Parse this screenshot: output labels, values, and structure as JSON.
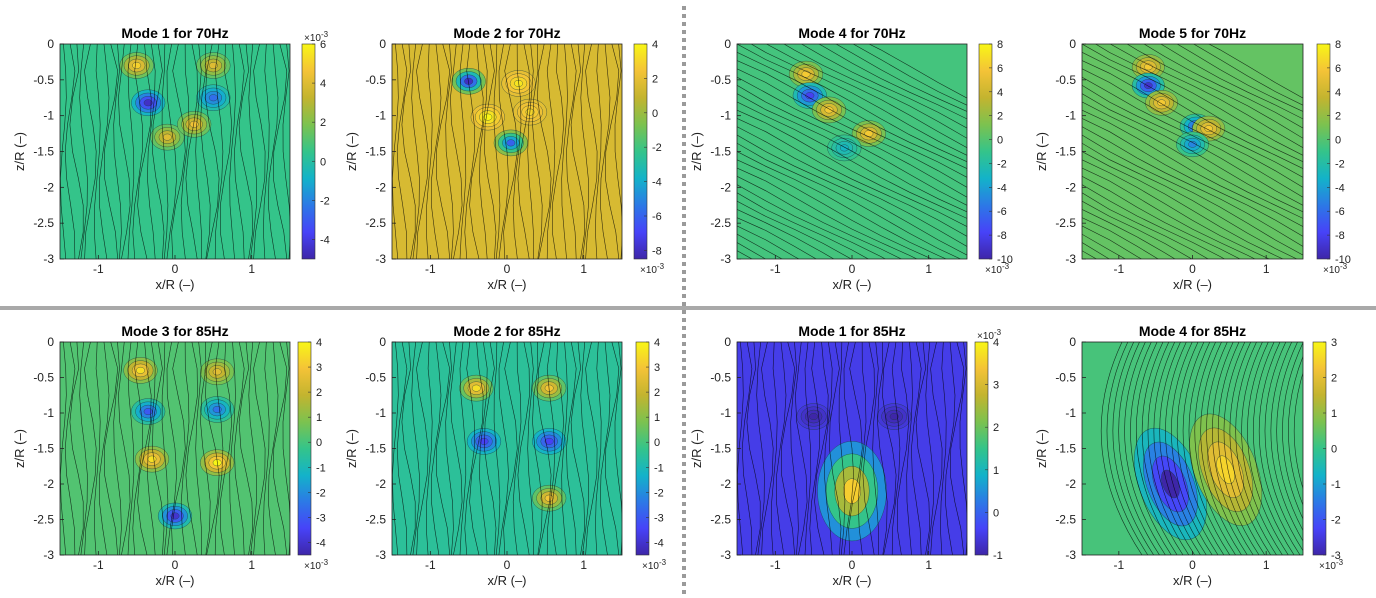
{
  "figure": {
    "panels": [
      {
        "title": "Mode 1 for 70Hz",
        "colorbar_ticks": [
          "6",
          "4",
          "2",
          "0",
          "-2",
          "-4"
        ],
        "colorbar_exp": "×10",
        "colorbar_exp_power": "-3",
        "colorbar_exp_pos": "top"
      },
      {
        "title": "Mode 2 for 70Hz",
        "colorbar_ticks": [
          "4",
          "2",
          "0",
          "-2",
          "-4",
          "-6",
          "-8"
        ],
        "colorbar_exp": "×10",
        "colorbar_exp_power": "-3",
        "colorbar_exp_pos": "bottom"
      },
      {
        "title": "Mode 4 for 70Hz",
        "colorbar_ticks": [
          "8",
          "6",
          "4",
          "2",
          "0",
          "-2",
          "-4",
          "-6",
          "-8",
          "-10"
        ],
        "colorbar_exp": "×10",
        "colorbar_exp_power": "-3",
        "colorbar_exp_pos": "bottom"
      },
      {
        "title": "Mode 5 for 70Hz",
        "colorbar_ticks": [
          "8",
          "6",
          "4",
          "2",
          "0",
          "-2",
          "-4",
          "-6",
          "-8",
          "-10"
        ],
        "colorbar_exp": "×10",
        "colorbar_exp_power": "-3",
        "colorbar_exp_pos": "bottom"
      },
      {
        "title": "Mode 3 for 85Hz",
        "colorbar_ticks": [
          "4",
          "3",
          "2",
          "1",
          "0",
          "-1",
          "-2",
          "-3",
          "-4"
        ],
        "colorbar_exp": "×10",
        "colorbar_exp_power": "-3",
        "colorbar_exp_pos": "bottom"
      },
      {
        "title": "Mode 2 for 85Hz",
        "colorbar_ticks": [
          "4",
          "3",
          "2",
          "1",
          "0",
          "-1",
          "-2",
          "-3",
          "-4"
        ],
        "colorbar_exp": "×10",
        "colorbar_exp_power": "-3",
        "colorbar_exp_pos": "bottom"
      },
      {
        "title": "Mode 1 for 85Hz",
        "colorbar_ticks": [
          "4",
          "3",
          "2",
          "1",
          "0",
          "-1"
        ],
        "colorbar_exp": "×10",
        "colorbar_exp_power": "-3",
        "colorbar_exp_pos": "top"
      },
      {
        "title": "Mode 4 for 85Hz",
        "colorbar_ticks": [
          "3",
          "2",
          "1",
          "0",
          "-1",
          "-2",
          "-3"
        ],
        "colorbar_exp": "×10",
        "colorbar_exp_power": "-3",
        "colorbar_exp_pos": "bottom"
      }
    ],
    "x_ticks": [
      "-1",
      "0",
      "1"
    ],
    "y_ticks": [
      "0",
      "-0.5",
      "-1",
      "-1.5",
      "-2",
      "-2.5",
      "-3"
    ],
    "xlabel": "x/R (–)",
    "ylabel": "z/R (–)",
    "colors": {
      "colormap": [
        "#3e26a8",
        "#4743f8",
        "#2c79e6",
        "#13b3c9",
        "#34c48a",
        "#7cc24f",
        "#c3b42f",
        "#f4c337",
        "#f8f616"
      ],
      "streamline": "#000000",
      "divider_dotted": "#9a9a9a",
      "divider_solid": "#a9a9a9"
    }
  },
  "chart_data": [
    {
      "type": "heatmap",
      "title": "Mode 1 for 70Hz",
      "xlabel": "x/R (–)",
      "ylabel": "z/R (–)",
      "xlim": [
        -1.5,
        1.5
      ],
      "ylim": [
        -3,
        0
      ],
      "clim": [
        -5,
        6
      ],
      "scale": "x10^-3",
      "background": 0.5,
      "features": [
        {
          "x": -0.5,
          "y": -0.3,
          "value": 5
        },
        {
          "x": 0.5,
          "y": -0.3,
          "value": 4
        },
        {
          "x": -0.35,
          "y": -0.82,
          "value": -4.5
        },
        {
          "x": 0.5,
          "y": -0.75,
          "value": -2.5
        },
        {
          "x": -0.1,
          "y": -1.3,
          "value": 4
        },
        {
          "x": 0.25,
          "y": -1.12,
          "value": 4.5
        }
      ],
      "streamlines": "vertical"
    },
    {
      "type": "heatmap",
      "title": "Mode 2 for 70Hz",
      "xlabel": "x/R (–)",
      "ylabel": "z/R (–)",
      "xlim": [
        -1.5,
        1.5
      ],
      "ylim": [
        -3,
        0
      ],
      "clim": [
        -8.5,
        4
      ],
      "scale": "x10^-3",
      "background": 1.5,
      "features": [
        {
          "x": -0.5,
          "y": -0.52,
          "value": -8
        },
        {
          "x": 0.15,
          "y": -0.55,
          "value": 3.5
        },
        {
          "x": -0.25,
          "y": -1.02,
          "value": 4
        },
        {
          "x": 0.3,
          "y": -0.95,
          "value": 3
        },
        {
          "x": 0.05,
          "y": -1.38,
          "value": -6
        }
      ],
      "streamlines": "vertical"
    },
    {
      "type": "heatmap",
      "title": "Mode 4 for 70Hz",
      "xlabel": "x/R (–)",
      "ylabel": "z/R (–)",
      "xlim": [
        -1.5,
        1.5
      ],
      "ylim": [
        -3,
        0
      ],
      "clim": [
        -10,
        8
      ],
      "scale": "x10^-3",
      "background": -0.5,
      "features": [
        {
          "x": -0.6,
          "y": -0.42,
          "value": 6
        },
        {
          "x": -0.55,
          "y": -0.72,
          "value": -8
        },
        {
          "x": -0.3,
          "y": -0.92,
          "value": 6
        },
        {
          "x": 0.22,
          "y": -1.25,
          "value": 6
        },
        {
          "x": -0.1,
          "y": -1.45,
          "value": -3
        }
      ],
      "streamlines": "diagonal"
    },
    {
      "type": "heatmap",
      "title": "Mode 5 for 70Hz",
      "xlabel": "x/R (–)",
      "ylabel": "z/R (–)",
      "xlim": [
        -1.5,
        1.5
      ],
      "ylim": [
        -3,
        0
      ],
      "clim": [
        -10,
        8
      ],
      "scale": "x10^-3",
      "background": 0.5,
      "features": [
        {
          "x": -0.6,
          "y": -0.32,
          "value": 6
        },
        {
          "x": -0.6,
          "y": -0.58,
          "value": -9
        },
        {
          "x": -0.42,
          "y": -0.82,
          "value": 6
        },
        {
          "x": 0.05,
          "y": -1.15,
          "value": -7
        },
        {
          "x": 0.22,
          "y": -1.18,
          "value": 6
        },
        {
          "x": 0.0,
          "y": -1.4,
          "value": -5
        }
      ],
      "streamlines": "diagonal"
    },
    {
      "type": "heatmap",
      "title": "Mode 3 for 85Hz",
      "xlabel": "x/R (–)",
      "ylabel": "z/R (–)",
      "xlim": [
        -1.5,
        1.5
      ],
      "ylim": [
        -3,
        0
      ],
      "clim": [
        -4.5,
        4
      ],
      "scale": "x10^-3",
      "background": 0.2,
      "features": [
        {
          "x": -0.45,
          "y": -0.4,
          "value": 3.5
        },
        {
          "x": 0.55,
          "y": -0.42,
          "value": 2.5
        },
        {
          "x": -0.35,
          "y": -0.98,
          "value": -3
        },
        {
          "x": 0.55,
          "y": -0.95,
          "value": -2.5
        },
        {
          "x": -0.3,
          "y": -1.65,
          "value": 3.5
        },
        {
          "x": 0.55,
          "y": -1.7,
          "value": 4
        },
        {
          "x": 0.0,
          "y": -2.45,
          "value": -4
        }
      ],
      "streamlines": "vertical"
    },
    {
      "type": "heatmap",
      "title": "Mode 2 for 85Hz",
      "xlabel": "x/R (–)",
      "ylabel": "z/R (–)",
      "xlim": [
        -1.5,
        1.5
      ],
      "ylim": [
        -3,
        0
      ],
      "clim": [
        -4.5,
        4
      ],
      "scale": "x10^-3",
      "background": -0.5,
      "features": [
        {
          "x": -0.4,
          "y": -0.65,
          "value": 3.5
        },
        {
          "x": 0.55,
          "y": -0.65,
          "value": 3
        },
        {
          "x": -0.3,
          "y": -1.4,
          "value": -3.5
        },
        {
          "x": 0.55,
          "y": -1.4,
          "value": -3.5
        },
        {
          "x": 0.55,
          "y": -2.2,
          "value": 3
        }
      ],
      "streamlines": "vertical"
    },
    {
      "type": "heatmap",
      "title": "Mode 1 for 85Hz",
      "xlabel": "x/R (–)",
      "ylabel": "z/R (–)",
      "xlim": [
        -1.5,
        1.5
      ],
      "ylim": [
        -3,
        0
      ],
      "clim": [
        -1,
        4
      ],
      "scale": "x10^-3",
      "background": -0.5,
      "features": [
        {
          "x": -0.5,
          "y": -1.05,
          "value": -1
        },
        {
          "x": 0.55,
          "y": -1.05,
          "value": -1
        },
        {
          "x": 0.0,
          "y": -2.1,
          "value": 3.5
        }
      ],
      "streamlines": "vertical"
    },
    {
      "type": "heatmap",
      "title": "Mode 4 for 85Hz",
      "xlabel": "x/R (–)",
      "ylabel": "z/R (–)",
      "xlim": [
        -1.5,
        1.5
      ],
      "ylim": [
        -3,
        0
      ],
      "clim": [
        -3,
        3
      ],
      "scale": "x10^-3",
      "background": 0.2,
      "features": [
        {
          "x": -0.3,
          "y": -2.0,
          "value": -3
        },
        {
          "x": 0.45,
          "y": -1.8,
          "value": 2.5
        }
      ],
      "streamlines": "curved"
    }
  ]
}
